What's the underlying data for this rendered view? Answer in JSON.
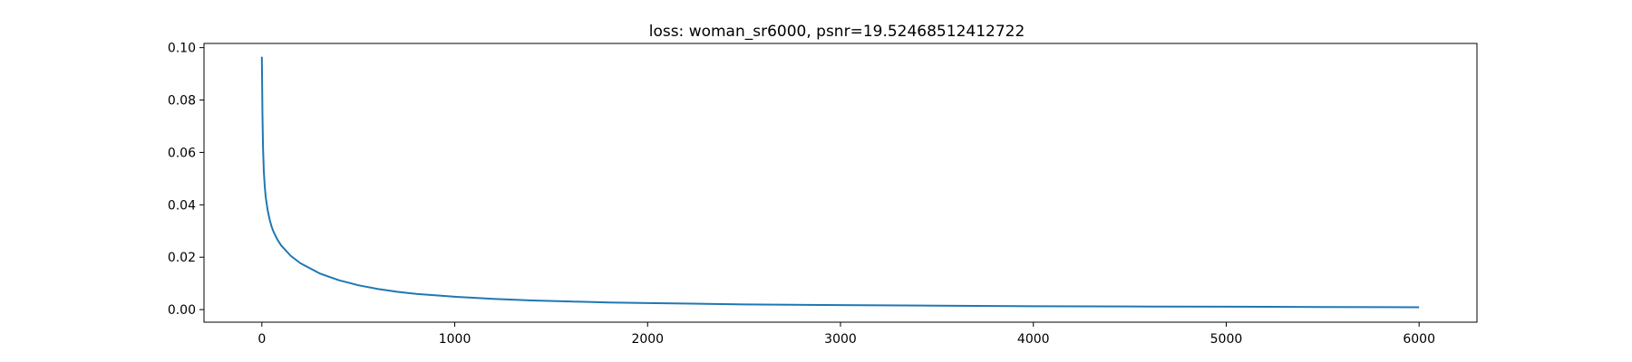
{
  "chart_data": {
    "type": "line",
    "title": "loss: woman_sr6000, psnr=19.52468512412722",
    "xlabel": "",
    "ylabel": "",
    "xlim": [
      -300,
      6300
    ],
    "ylim": [
      -0.0048,
      0.1016
    ],
    "grid": false,
    "x_ticks": [
      0,
      1000,
      2000,
      3000,
      4000,
      5000,
      6000
    ],
    "x_tick_labels": [
      "0",
      "1000",
      "2000",
      "3000",
      "4000",
      "5000",
      "6000"
    ],
    "y_ticks": [
      0.0,
      0.02,
      0.04,
      0.06,
      0.08,
      0.1
    ],
    "y_tick_labels": [
      "0.00",
      "0.02",
      "0.04",
      "0.06",
      "0.08",
      "0.10"
    ],
    "series": [
      {
        "color": "#1f77b4",
        "x": [
          0,
          3,
          6,
          10,
          15,
          20,
          30,
          40,
          50,
          60,
          80,
          100,
          150,
          200,
          300,
          400,
          500,
          600,
          700,
          800,
          1000,
          1200,
          1400,
          1600,
          1800,
          2000,
          2500,
          3000,
          3500,
          4000,
          4500,
          5000,
          5500,
          6000
        ],
        "values": [
          0.0965,
          0.075,
          0.062,
          0.053,
          0.047,
          0.043,
          0.038,
          0.0345,
          0.0318,
          0.0298,
          0.0268,
          0.0245,
          0.0205,
          0.0177,
          0.0138,
          0.0112,
          0.0093,
          0.0079,
          0.0068,
          0.006,
          0.0049,
          0.0041,
          0.0035,
          0.0031,
          0.0027,
          0.0025,
          0.002,
          0.0017,
          0.0015,
          0.0013,
          0.0012,
          0.0011,
          0.001,
          0.0009
        ]
      }
    ]
  }
}
